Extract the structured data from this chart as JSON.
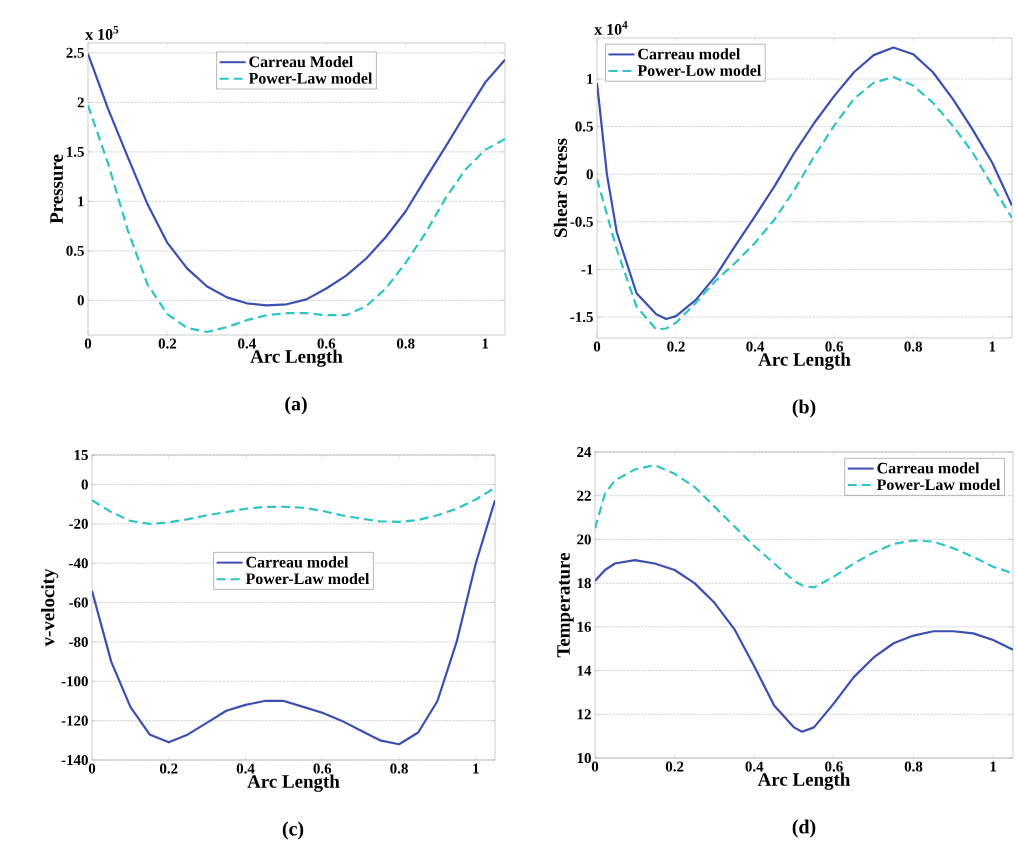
{
  "chart_data": [
    {
      "type": "line",
      "xlabel": "Arc Length",
      "ylabel": "Pressure",
      "annotations": [
        "x 10$^{5}$",
        "(a)"
      ],
      "xlim": [
        0,
        1.05
      ],
      "ylim": [
        -0.35,
        2.6
      ],
      "xticks": [
        0,
        0.2,
        0.4,
        0.6,
        0.8,
        1
      ],
      "yticks": [
        0,
        0.5,
        1,
        1.5,
        2,
        2.5
      ],
      "grid": "y",
      "legend": "top",
      "x": [
        0,
        0.05,
        0.1,
        0.15,
        0.2,
        0.25,
        0.3,
        0.35,
        0.4,
        0.45,
        0.5,
        0.55,
        0.6,
        0.65,
        0.7,
        0.75,
        0.8,
        0.85,
        0.9,
        0.95,
        1.0,
        1.05
      ],
      "series": [
        {
          "name": "Carreau Model",
          "color": "#3a4fb0",
          "line_style": "solid",
          "values": [
            2.49,
            1.94,
            1.45,
            0.97,
            0.58,
            0.32,
            0.14,
            0.03,
            -0.03,
            -0.05,
            -0.04,
            0.01,
            0.12,
            0.25,
            0.42,
            0.64,
            0.9,
            1.23,
            1.55,
            1.88,
            2.2,
            2.43
          ]
        },
        {
          "name": "Power-Law model",
          "color": "#2ec4c4",
          "line_style": "dashed",
          "values": [
            1.97,
            1.39,
            0.71,
            0.16,
            -0.14,
            -0.28,
            -0.32,
            -0.27,
            -0.2,
            -0.15,
            -0.13,
            -0.13,
            -0.15,
            -0.15,
            -0.06,
            0.12,
            0.38,
            0.68,
            1.03,
            1.32,
            1.52,
            1.63
          ]
        }
      ]
    },
    {
      "type": "line",
      "xlabel": "Arc Length",
      "ylabel": "Shear Stress",
      "annotations": [
        "x 10$^{4}$",
        "(b)"
      ],
      "xlim": [
        0,
        1.05
      ],
      "ylim": [
        -1.72,
        1.43
      ],
      "xticks": [
        0,
        0.2,
        0.4,
        0.6,
        0.8,
        1
      ],
      "yticks": [
        -1.5,
        -1,
        -0.5,
        0,
        0.5,
        1
      ],
      "grid": "y",
      "legend": "top left",
      "x": [
        0,
        0.025,
        0.05,
        0.1,
        0.15,
        0.175,
        0.2,
        0.25,
        0.3,
        0.35,
        0.4,
        0.45,
        0.5,
        0.55,
        0.6,
        0.65,
        0.7,
        0.75,
        0.8,
        0.85,
        0.9,
        0.95,
        1.0,
        1.05
      ],
      "series": [
        {
          "name": "Carreau model",
          "color": "#3a4fb0",
          "line_style": "solid",
          "values": [
            0.96,
            0,
            -0.61,
            -1.25,
            -1.47,
            -1.52,
            -1.49,
            -1.32,
            -1.07,
            -0.75,
            -0.44,
            -0.12,
            0.23,
            0.54,
            0.82,
            1.07,
            1.25,
            1.33,
            1.26,
            1.07,
            0.79,
            0.47,
            0.12,
            -0.33
          ]
        },
        {
          "name": "Power-Low model",
          "color": "#2ec4c4",
          "line_style": "dashed",
          "values": [
            -0.05,
            -0.42,
            -0.79,
            -1.39,
            -1.63,
            -1.62,
            -1.56,
            -1.35,
            -1.12,
            -0.93,
            -0.72,
            -0.47,
            -0.16,
            0.19,
            0.51,
            0.79,
            0.96,
            1.02,
            0.93,
            0.75,
            0.51,
            0.23,
            -0.12,
            -0.46
          ]
        }
      ]
    },
    {
      "type": "line",
      "xlabel": "Arc Length",
      "ylabel": "v-velocity",
      "annotations": [
        "(c)"
      ],
      "xlim": [
        0,
        1.05
      ],
      "ylim": [
        -140,
        15
      ],
      "xticks": [
        0,
        0.2,
        0.4,
        0.6,
        0.8,
        1
      ],
      "yticks": [
        -140,
        -120,
        -100,
        -80,
        -60,
        -40,
        -20,
        0,
        15
      ],
      "grid": "y",
      "legend": "center",
      "x": [
        0,
        0.05,
        0.1,
        0.15,
        0.2,
        0.25,
        0.3,
        0.35,
        0.4,
        0.45,
        0.5,
        0.55,
        0.6,
        0.65,
        0.7,
        0.75,
        0.8,
        0.85,
        0.9,
        0.95,
        1.0,
        1.05
      ],
      "series": [
        {
          "name": "Carreau model",
          "color": "#3a4fb0",
          "line_style": "solid",
          "values": [
            -54,
            -90,
            -113,
            -127,
            -131,
            -127,
            -121,
            -115,
            -112,
            -110,
            -110,
            -113,
            -116,
            -120,
            -125,
            -130,
            -132,
            -126,
            -110,
            -80,
            -40,
            -8
          ]
        },
        {
          "name": "Power-Law model",
          "color": "#2ec4c4",
          "line_style": "dashed",
          "values": [
            -8,
            -14,
            -18.5,
            -20,
            -19.3,
            -17.6,
            -15.6,
            -14,
            -12.3,
            -11.4,
            -11.3,
            -11.8,
            -13.4,
            -15.6,
            -17.3,
            -18.7,
            -19,
            -18,
            -15.6,
            -12.3,
            -7.6,
            -1.7
          ]
        }
      ]
    },
    {
      "type": "line",
      "xlabel": "Arc Length",
      "ylabel": "Temperature",
      "annotations": [
        "(d)"
      ],
      "xlim": [
        0,
        1.05
      ],
      "ylim": [
        10,
        24
      ],
      "xticks": [
        0,
        0.2,
        0.4,
        0.6,
        0.8,
        1
      ],
      "yticks": [
        10,
        12,
        14,
        16,
        18,
        20,
        22,
        24
      ],
      "grid": "y",
      "legend": "top right",
      "x": [
        0,
        0.025,
        0.05,
        0.1,
        0.15,
        0.2,
        0.25,
        0.3,
        0.35,
        0.4,
        0.45,
        0.5,
        0.52,
        0.55,
        0.6,
        0.65,
        0.7,
        0.75,
        0.8,
        0.85,
        0.9,
        0.95,
        1.0,
        1.05
      ],
      "series": [
        {
          "name": "Carreau model",
          "color": "#3a4fb0",
          "line_style": "solid",
          "values": [
            18.1,
            18.6,
            18.9,
            19.05,
            18.9,
            18.6,
            18.0,
            17.1,
            15.9,
            14.2,
            12.4,
            11.4,
            11.2,
            11.4,
            12.5,
            13.7,
            14.6,
            15.25,
            15.6,
            15.8,
            15.8,
            15.7,
            15.4,
            14.95
          ]
        },
        {
          "name": "Power-Law model",
          "color": "#2ec4c4",
          "line_style": "dashed",
          "values": [
            20.5,
            22.1,
            22.7,
            23.2,
            23.4,
            23.0,
            22.4,
            21.5,
            20.6,
            19.7,
            18.9,
            18.1,
            17.9,
            17.8,
            18.3,
            18.9,
            19.4,
            19.8,
            19.95,
            19.9,
            19.6,
            19.2,
            18.75,
            18.45
          ]
        }
      ]
    }
  ]
}
